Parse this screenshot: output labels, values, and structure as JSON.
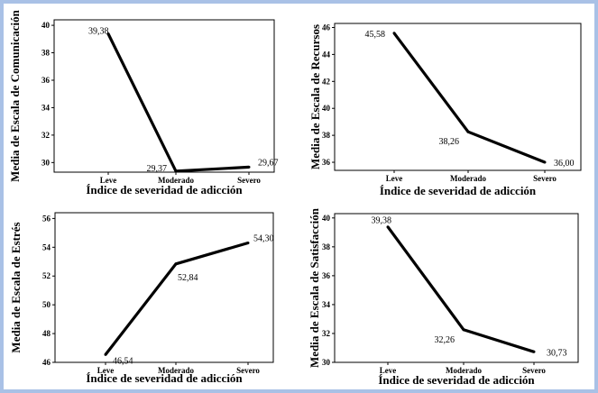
{
  "chart_data": [
    {
      "type": "line",
      "categories": [
        "Leve",
        "Moderado",
        "Severo"
      ],
      "values": [
        39.38,
        29.37,
        29.67
      ],
      "data_labels": [
        "39,38",
        "29,37",
        "29,67"
      ],
      "ylim": [
        29.3,
        40.4
      ],
      "yticks": [
        "30",
        "32",
        "34",
        "36",
        "38",
        "40"
      ],
      "ytick_values": [
        30,
        32,
        34,
        36,
        38,
        40
      ],
      "ylabel": "Media de Escala de  Comunicación",
      "xlabel": "Índice de severidad de adicción"
    },
    {
      "type": "line",
      "categories": [
        "Leve",
        "Moderado",
        "Severo"
      ],
      "values": [
        45.58,
        38.26,
        36.0
      ],
      "data_labels": [
        "45,58",
        "38,26",
        "36,00"
      ],
      "ylim": [
        35.4,
        46.3
      ],
      "yticks": [
        "36",
        "38",
        "40",
        "42",
        "44",
        "46"
      ],
      "ytick_values": [
        36,
        38,
        40,
        42,
        44,
        46
      ],
      "ylabel": "Media de Escala de Recursos",
      "xlabel": "Índice de severidad de adicción"
    },
    {
      "type": "line",
      "categories": [
        "Leve",
        "Moderado",
        "Severo"
      ],
      "values": [
        46.54,
        52.84,
        54.3
      ],
      "data_labels": [
        "46,54",
        "52,84",
        "54,30"
      ],
      "ylim": [
        46.0,
        56.4
      ],
      "yticks": [
        "46",
        "48",
        "50",
        "52",
        "54",
        "56"
      ],
      "ytick_values": [
        46,
        48,
        50,
        52,
        54,
        56
      ],
      "ylabel": "Media de Escala de Estrés",
      "xlabel": "Índice de severidad de adicción"
    },
    {
      "type": "line",
      "categories": [
        "Leve",
        "Moderado",
        "Severo"
      ],
      "values": [
        39.38,
        32.26,
        30.73
      ],
      "data_labels": [
        "39,38",
        "32,26",
        "30,73"
      ],
      "ylim": [
        30.0,
        40.3
      ],
      "yticks": [
        "30",
        "32",
        "34",
        "36",
        "38",
        "40"
      ],
      "ytick_values": [
        30,
        32,
        34,
        36,
        38,
        40
      ],
      "ylabel": "Media de Escala de Satisfacción",
      "xlabel": "Índice de severidad de adicción"
    }
  ]
}
